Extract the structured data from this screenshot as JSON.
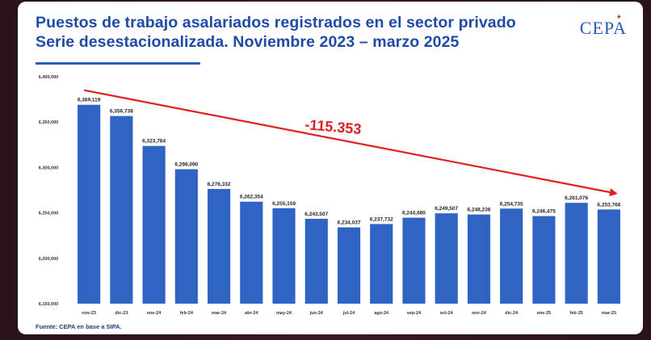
{
  "title_line1": "Puestos de trabajo asalariados registrados en el sector privado",
  "title_line2": "Serie desestacionalizada. Noviembre 2023 – marzo 2025",
  "logo": "CEPA",
  "source": "Fuente: CEPA en base a SIPA.",
  "colors": {
    "bar": "#2f63c4",
    "arrow": "#e02020",
    "title": "#1f4aa8"
  },
  "chart_data": {
    "type": "bar",
    "categories": [
      "nov-23",
      "dic-23",
      "ene-24",
      "feb-24",
      "mar-24",
      "abr-24",
      "may-24",
      "jun-24",
      "jul-24",
      "ago-24",
      "sep-24",
      "oct-24",
      "nov-24",
      "dic-24",
      "ene-25",
      "feb-25",
      "mar-25"
    ],
    "values": [
      6369119,
      6356738,
      6323764,
      6298090,
      6276332,
      6262354,
      6255159,
      6243507,
      6234037,
      6237732,
      6244680,
      6249507,
      6248238,
      6254735,
      6246475,
      6261076,
      6253766
    ],
    "value_labels": [
      "6,369,119",
      "6,356,738",
      "6,323,764",
      "6,298,090",
      "6,276,332",
      "6,262,354",
      "6,255,159",
      "6,243,507",
      "6,234,037",
      "6,237,732",
      "6,244,680",
      "6,249,507",
      "6,248,238",
      "6,254,735",
      "6,246,475",
      "6,261,076",
      "6,253,766"
    ],
    "ylim": [
      6150000,
      6400000
    ],
    "yticks": [
      6150000,
      6200000,
      6250000,
      6300000,
      6350000,
      6400000
    ],
    "ytick_labels": [
      "6,150,000",
      "6,200,000",
      "6,250,000",
      "6,300,000",
      "6,350,000",
      "6,400,000"
    ],
    "annotation": "-115.353",
    "grid": false
  }
}
